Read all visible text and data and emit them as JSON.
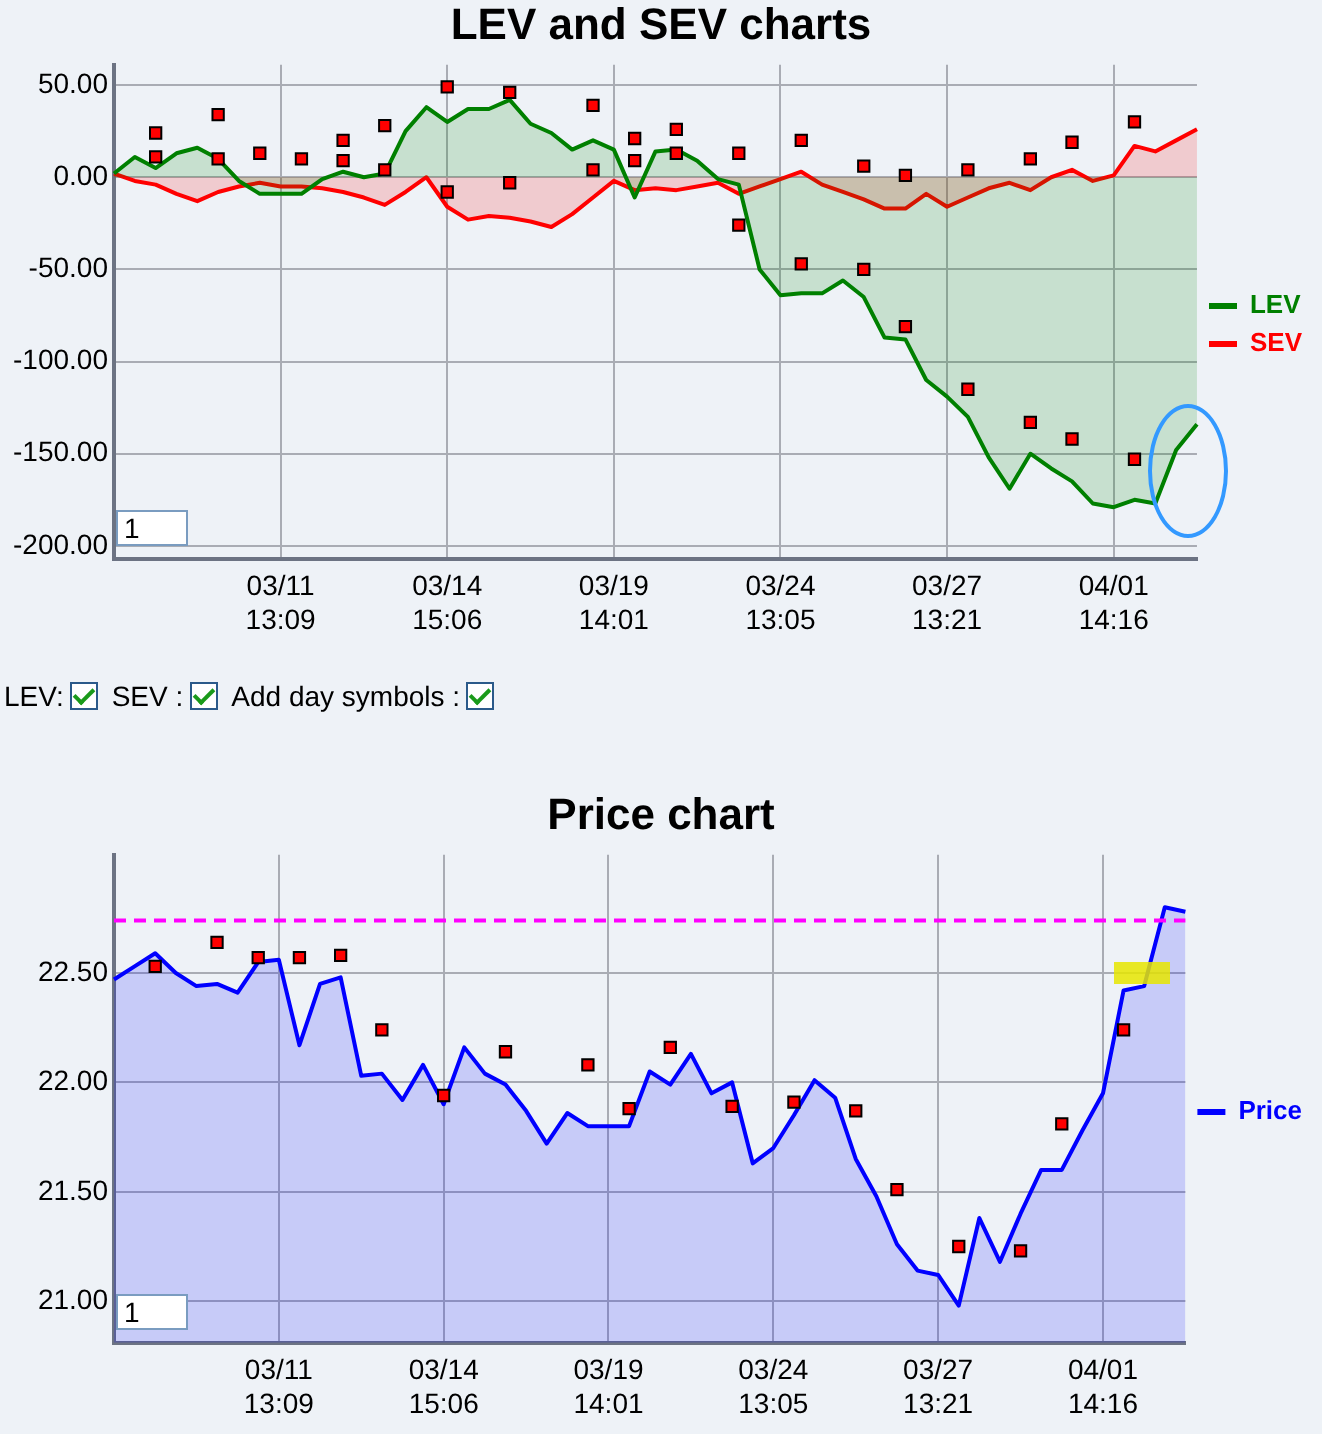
{
  "chart_data": [
    {
      "type": "area",
      "title": "LEV and SEV charts",
      "categories": [
        null,
        null,
        null,
        null,
        null,
        null,
        null,
        null,
        "03/11 13:09",
        null,
        null,
        null,
        null,
        null,
        null,
        null,
        "03/14 15:06",
        null,
        null,
        null,
        null,
        null,
        null,
        null,
        "03/19 14:01",
        null,
        null,
        null,
        null,
        null,
        null,
        null,
        "03/24 13:05",
        null,
        null,
        null,
        null,
        null,
        null,
        null,
        "03/27 13:21",
        null,
        null,
        null,
        null,
        null,
        null,
        null,
        "04/01 14:16",
        null,
        null,
        null,
        null
      ],
      "ylim": [
        -207,
        61
      ],
      "yticks": [
        {
          "value": 50,
          "label": "50.00"
        },
        {
          "value": 0,
          "label": "0.00"
        },
        {
          "value": -50,
          "label": "-50.00"
        },
        {
          "value": -100,
          "label": "-100.00"
        },
        {
          "value": -150,
          "label": "-150.00"
        },
        {
          "value": -200,
          "label": "-200.00"
        }
      ],
      "grid": true,
      "legend": "right",
      "annotations": [
        "1",
        "LEV:",
        "SEV :",
        "Add day symbols :"
      ],
      "series": [
        {
          "name": "LEV",
          "type": "area",
          "color": "#008000",
          "values": [
            2,
            11,
            5,
            13,
            16,
            10,
            -2,
            -9,
            -9,
            -9,
            -1,
            3,
            0,
            2,
            25,
            38,
            30,
            37,
            37,
            42,
            29,
            24,
            15,
            20,
            15,
            -11,
            14,
            15,
            9,
            -1,
            -4,
            -50,
            -64,
            -63,
            -63,
            -56,
            -65,
            -87,
            -88,
            -110,
            -119,
            -130,
            -152,
            -169,
            -150,
            -158,
            -165,
            -177,
            -179,
            -175,
            -177,
            -148,
            -134
          ]
        },
        {
          "name": "SEV",
          "type": "area",
          "color": "#ff0000",
          "values": [
            2,
            -2,
            -4,
            -9,
            -13,
            -8,
            -5,
            -3,
            -5,
            -5,
            -6,
            -8,
            -11,
            -15,
            -8,
            0,
            -16,
            -23,
            -21,
            -22,
            -24,
            -27,
            -20,
            -11,
            -2,
            -7,
            -6,
            -7,
            -5,
            -3,
            -9,
            -5,
            -1,
            3,
            -4,
            -8,
            -12,
            -17,
            -17,
            -9,
            -16,
            -11,
            -6,
            -3,
            -7,
            0,
            4,
            -2,
            1,
            17,
            14,
            20,
            26
          ]
        },
        {
          "type": "scatter",
          "marker": "square",
          "color": "#ff0000",
          "values": [
            null,
            null,
            24,
            null,
            null,
            34,
            null,
            13,
            null,
            10,
            null,
            20,
            null,
            28,
            null,
            null,
            49,
            null,
            null,
            46,
            null,
            null,
            null,
            39,
            null,
            21,
            null,
            26,
            null,
            null,
            13,
            null,
            null,
            20,
            null,
            null,
            6,
            null,
            1,
            null,
            null,
            4,
            null,
            null,
            10,
            null,
            19,
            null,
            null,
            30,
            null,
            null,
            null
          ]
        },
        {
          "type": "scatter",
          "marker": "square",
          "color": "#ff0000",
          "values": [
            null,
            null,
            11,
            null,
            null,
            10,
            null,
            null,
            null,
            null,
            null,
            9,
            null,
            4,
            null,
            null,
            -8,
            null,
            null,
            -3,
            null,
            null,
            null,
            4,
            null,
            9,
            null,
            13,
            null,
            null,
            -26,
            null,
            null,
            -47,
            null,
            null,
            -50,
            null,
            -81,
            null,
            null,
            -115,
            null,
            null,
            -133,
            null,
            -142,
            null,
            null,
            -153,
            null,
            null,
            null
          ]
        }
      ]
    },
    {
      "type": "area",
      "title": "Price chart",
      "categories": [
        null,
        null,
        null,
        null,
        null,
        null,
        null,
        null,
        "03/11 13:09",
        null,
        null,
        null,
        null,
        null,
        null,
        null,
        "03/14 15:06",
        null,
        null,
        null,
        null,
        null,
        null,
        null,
        "03/19 14:01",
        null,
        null,
        null,
        null,
        null,
        null,
        null,
        "03/24 13:05",
        null,
        null,
        null,
        null,
        null,
        null,
        null,
        "03/27 13:21",
        null,
        null,
        null,
        null,
        null,
        null,
        null,
        "04/01 14:16",
        null,
        null,
        null,
        null
      ],
      "ylim": [
        20.81,
        23.04
      ],
      "yticks": [
        {
          "value": 21,
          "label": "21.00"
        },
        {
          "value": 21.5,
          "label": "21.50"
        },
        {
          "value": 22,
          "label": "22.00"
        },
        {
          "value": 22.5,
          "label": "22.50"
        }
      ],
      "grid": true,
      "legend": "right",
      "annotations": [
        "1"
      ],
      "ref_lines": [
        {
          "axis": "y",
          "value": 22.74,
          "color": "#ff00ff",
          "line_style": "dashed"
        }
      ],
      "series": [
        {
          "name": "Price",
          "type": "area",
          "color": "#0000ff",
          "values": [
            22.47,
            22.53,
            22.59,
            22.5,
            22.44,
            22.45,
            22.41,
            22.55,
            22.56,
            22.17,
            22.45,
            22.48,
            22.03,
            22.04,
            21.92,
            22.08,
            21.9,
            22.16,
            22.04,
            21.99,
            21.87,
            21.72,
            21.86,
            21.8,
            21.8,
            21.8,
            22.05,
            21.99,
            22.13,
            21.95,
            22.0,
            21.63,
            21.7,
            21.85,
            22.01,
            21.93,
            21.65,
            21.48,
            21.26,
            21.14,
            21.12,
            20.98,
            21.38,
            21.18,
            21.4,
            21.6,
            21.6,
            21.78,
            21.95,
            22.42,
            22.44,
            22.8,
            22.78
          ]
        },
        {
          "type": "scatter",
          "marker": "square",
          "color": "#ff0000",
          "values": [
            null,
            null,
            22.53,
            null,
            null,
            22.64,
            null,
            22.57,
            null,
            22.57,
            null,
            22.58,
            null,
            22.24,
            null,
            null,
            21.94,
            null,
            null,
            22.14,
            null,
            null,
            null,
            22.08,
            null,
            21.88,
            null,
            22.16,
            null,
            null,
            21.89,
            null,
            null,
            21.91,
            null,
            null,
            21.87,
            null,
            21.51,
            null,
            null,
            21.25,
            null,
            null,
            21.23,
            null,
            21.81,
            null,
            null,
            22.24,
            null,
            null,
            null
          ]
        }
      ]
    }
  ]
}
